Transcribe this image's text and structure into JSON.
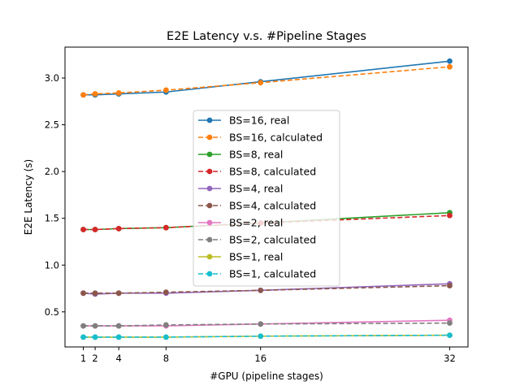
{
  "chart_data": {
    "type": "line",
    "title": "E2E Latency v.s. #Pipeline Stages",
    "xlabel": "#GPU (pipeline stages)",
    "ylabel": "E2E Latency (s)",
    "x": [
      1,
      2,
      4,
      8,
      16,
      32
    ],
    "x_ticks": [
      1,
      2,
      4,
      8,
      16,
      32
    ],
    "y_ticks": [
      0.5,
      1.0,
      1.5,
      2.0,
      2.5,
      3.0
    ],
    "y_tick_labels": [
      "0.5",
      "1.0",
      "1.5",
      "2.0",
      "2.5",
      "3.0"
    ],
    "xlim": [
      -0.55,
      33.55
    ],
    "ylim": [
      0.125,
      3.33
    ],
    "grid": false,
    "legend_position": "center",
    "series": [
      {
        "name": "BS=16, real",
        "color": "#1f77b4",
        "dashed": false,
        "values": [
          2.82,
          2.82,
          2.83,
          2.85,
          2.96,
          3.18
        ]
      },
      {
        "name": "BS=16, calculated",
        "color": "#ff7f0e",
        "dashed": true,
        "values": [
          2.82,
          2.83,
          2.84,
          2.87,
          2.95,
          3.12
        ]
      },
      {
        "name": "BS=8, real",
        "color": "#2ca02c",
        "dashed": false,
        "values": [
          1.38,
          1.38,
          1.39,
          1.4,
          1.45,
          1.56
        ]
      },
      {
        "name": "BS=8, calculated",
        "color": "#d62728",
        "dashed": true,
        "values": [
          1.38,
          1.38,
          1.39,
          1.4,
          1.45,
          1.53
        ]
      },
      {
        "name": "BS=4, real",
        "color": "#9467bd",
        "dashed": false,
        "values": [
          0.7,
          0.69,
          0.7,
          0.7,
          0.73,
          0.8
        ]
      },
      {
        "name": "BS=4, calculated",
        "color": "#8c564b",
        "dashed": true,
        "values": [
          0.7,
          0.7,
          0.7,
          0.71,
          0.73,
          0.78
        ]
      },
      {
        "name": "BS=2, real",
        "color": "#e377c2",
        "dashed": false,
        "values": [
          0.35,
          0.35,
          0.35,
          0.35,
          0.37,
          0.41
        ]
      },
      {
        "name": "BS=2, calculated",
        "color": "#7f7f7f",
        "dashed": true,
        "values": [
          0.35,
          0.35,
          0.35,
          0.36,
          0.37,
          0.38
        ]
      },
      {
        "name": "BS=1, real",
        "color": "#bcbd22",
        "dashed": false,
        "values": [
          0.23,
          0.23,
          0.23,
          0.23,
          0.24,
          0.25
        ]
      },
      {
        "name": "BS=1, calculated",
        "color": "#17becf",
        "dashed": true,
        "values": [
          0.23,
          0.23,
          0.23,
          0.23,
          0.24,
          0.25
        ]
      }
    ]
  }
}
